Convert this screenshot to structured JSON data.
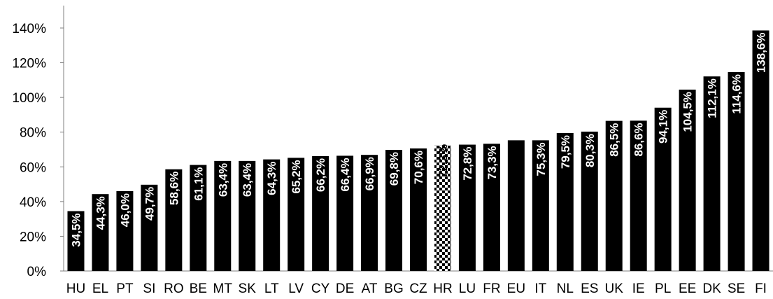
{
  "chart_data": {
    "type": "bar",
    "categories": [
      "HU",
      "EL",
      "PT",
      "SI",
      "RO",
      "BE",
      "MT",
      "SK",
      "LT",
      "LV",
      "CY",
      "DE",
      "AT",
      "BG",
      "CZ",
      "HR",
      "LU",
      "FR",
      "EU",
      "IT",
      "NL",
      "ES",
      "UK",
      "IE",
      "PL",
      "EE",
      "DK",
      "SE",
      "FI"
    ],
    "values": [
      34.5,
      44.3,
      46.0,
      49.7,
      58.6,
      61.1,
      63.4,
      63.4,
      64.3,
      65.2,
      66.2,
      66.4,
      66.9,
      69.8,
      70.6,
      72.3,
      72.8,
      73.3,
      75.3,
      75.3,
      79.5,
      80.3,
      86.5,
      86.6,
      94.1,
      104.5,
      112.1,
      114.6,
      138.6
    ],
    "data_labels": [
      "34,5%",
      "44,3%",
      "46,0%",
      "49,7%",
      "58,6%",
      "61,1%",
      "63,4%",
      "63,4%",
      "64,3%",
      "65,2%",
      "66,2%",
      "66,4%",
      "66,9%",
      "69,8%",
      "70,6%",
      "72,3%",
      "72,8%",
      "73,3%",
      "",
      "75,3%",
      "79,5%",
      "80,3%",
      "86,5%",
      "86,6%",
      "94,1%",
      "104,5%",
      "112,1%",
      "114,6%",
      "138,6%"
    ],
    "highlight_category": "HR",
    "highlight_pattern": "checkerboard",
    "bar_color": "#000000",
    "label_color": "#ffffff",
    "y_tick_labels": [
      "0%",
      "20%",
      "40%",
      "60%",
      "80%",
      "100%",
      "120%",
      "140%"
    ],
    "y_ticks": [
      0,
      20,
      40,
      60,
      80,
      100,
      120,
      140
    ],
    "ylim": [
      0,
      140
    ],
    "title": "",
    "xlabel": "",
    "ylabel": "",
    "grid": false,
    "legend": "none"
  }
}
